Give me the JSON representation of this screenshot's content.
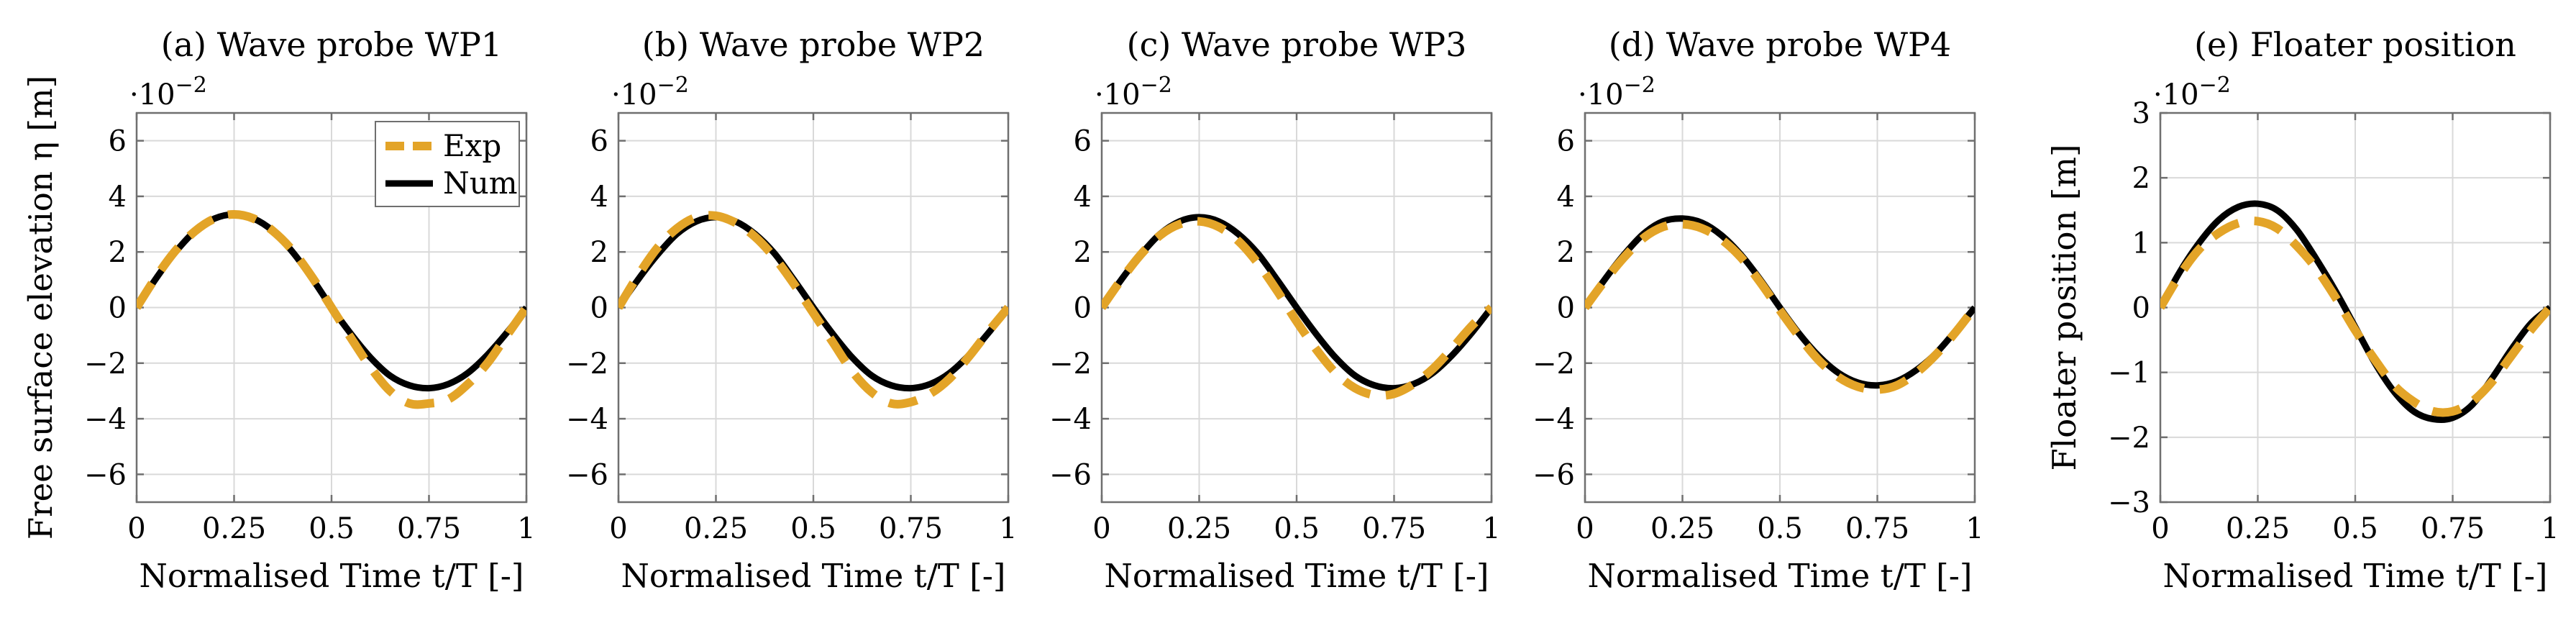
{
  "chart_data": [
    {
      "type": "line",
      "title": "(a) Wave probe WP1",
      "xlabel": "Normalised Time t/T [-]",
      "ylabel": "Free surface elevation η [m]",
      "y_multiplier": "·10^−2",
      "xlim": [
        0,
        1
      ],
      "ylim": [
        -7,
        7
      ],
      "xticks": [
        "0",
        "0.25",
        "0.5",
        "0.75",
        "1"
      ],
      "yticks": [
        "−6",
        "−4",
        "−2",
        "0",
        "2",
        "4",
        "6"
      ],
      "legend": [
        "Exp",
        "Num"
      ],
      "series": [
        {
          "name": "Exp",
          "color": "#E3A428",
          "style": "dashed",
          "x": [
            0,
            0.05,
            0.1,
            0.15,
            0.2,
            0.25,
            0.3,
            0.35,
            0.4,
            0.45,
            0.5,
            0.55,
            0.6,
            0.65,
            0.7,
            0.75,
            0.8,
            0.85,
            0.9,
            0.95,
            1
          ],
          "y": [
            0.0,
            1.1,
            2.05,
            2.75,
            3.2,
            3.35,
            3.2,
            2.75,
            2.05,
            1.1,
            0.0,
            -1.1,
            -2.15,
            -3.0,
            -3.45,
            -3.45,
            -3.3,
            -2.75,
            -2.0,
            -1.0,
            0.0
          ]
        },
        {
          "name": "Num",
          "color": "#000000",
          "style": "solid",
          "x": [
            0,
            0.05,
            0.1,
            0.15,
            0.2,
            0.25,
            0.3,
            0.35,
            0.4,
            0.45,
            0.5,
            0.55,
            0.6,
            0.65,
            0.7,
            0.75,
            0.8,
            0.85,
            0.9,
            0.95,
            1
          ],
          "y": [
            0.0,
            1.05,
            2.0,
            2.75,
            3.2,
            3.35,
            3.2,
            2.75,
            2.0,
            1.05,
            0.0,
            -0.95,
            -1.8,
            -2.45,
            -2.8,
            -2.9,
            -2.75,
            -2.35,
            -1.7,
            -0.9,
            0.0
          ]
        }
      ]
    },
    {
      "type": "line",
      "title": "(b) Wave probe WP2",
      "xlabel": "Normalised Time t/T [-]",
      "ylabel": "",
      "y_multiplier": "·10^−2",
      "xlim": [
        0,
        1
      ],
      "ylim": [
        -7,
        7
      ],
      "xticks": [
        "0",
        "0.25",
        "0.5",
        "0.75",
        "1"
      ],
      "yticks": [
        "−6",
        "−4",
        "−2",
        "0",
        "2",
        "4",
        "6"
      ],
      "series": [
        {
          "name": "Exp",
          "color": "#E3A428",
          "style": "dashed",
          "x": [
            0,
            0.05,
            0.1,
            0.15,
            0.2,
            0.25,
            0.3,
            0.35,
            0.4,
            0.45,
            0.5,
            0.55,
            0.6,
            0.65,
            0.7,
            0.75,
            0.8,
            0.85,
            0.9,
            0.95,
            1
          ],
          "y": [
            0.0,
            1.15,
            2.15,
            2.85,
            3.25,
            3.3,
            3.05,
            2.55,
            1.8,
            0.85,
            -0.2,
            -1.25,
            -2.3,
            -3.05,
            -3.45,
            -3.4,
            -3.1,
            -2.55,
            -1.75,
            -0.85,
            0.0
          ]
        },
        {
          "name": "Num",
          "color": "#000000",
          "style": "solid",
          "x": [
            0,
            0.05,
            0.1,
            0.15,
            0.2,
            0.25,
            0.3,
            0.35,
            0.4,
            0.45,
            0.5,
            0.55,
            0.6,
            0.65,
            0.7,
            0.75,
            0.8,
            0.85,
            0.9,
            0.95,
            1
          ],
          "y": [
            0.0,
            1.0,
            1.9,
            2.65,
            3.1,
            3.25,
            3.1,
            2.65,
            1.95,
            1.0,
            0.0,
            -0.95,
            -1.8,
            -2.45,
            -2.8,
            -2.9,
            -2.75,
            -2.35,
            -1.7,
            -0.9,
            0.0
          ]
        }
      ]
    },
    {
      "type": "line",
      "title": "(c) Wave probe WP3",
      "xlabel": "Normalised Time t/T [-]",
      "ylabel": "",
      "y_multiplier": "·10^−2",
      "xlim": [
        0,
        1
      ],
      "ylim": [
        -7,
        7
      ],
      "xticks": [
        "0",
        "0.25",
        "0.5",
        "0.75",
        "1"
      ],
      "yticks": [
        "−6",
        "−4",
        "−2",
        "0",
        "2",
        "4",
        "6"
      ],
      "series": [
        {
          "name": "Exp",
          "color": "#E3A428",
          "style": "dashed",
          "x": [
            0,
            0.05,
            0.1,
            0.15,
            0.2,
            0.25,
            0.3,
            0.35,
            0.4,
            0.45,
            0.5,
            0.55,
            0.6,
            0.65,
            0.7,
            0.75,
            0.8,
            0.85,
            0.9,
            0.95,
            1
          ],
          "y": [
            0.0,
            1.0,
            1.9,
            2.6,
            3.0,
            3.1,
            2.9,
            2.4,
            1.6,
            0.6,
            -0.5,
            -1.5,
            -2.35,
            -2.9,
            -3.15,
            -3.1,
            -2.75,
            -2.2,
            -1.45,
            -0.65,
            0.0
          ]
        },
        {
          "name": "Num",
          "color": "#000000",
          "style": "solid",
          "x": [
            0,
            0.05,
            0.1,
            0.15,
            0.2,
            0.25,
            0.3,
            0.35,
            0.4,
            0.45,
            0.5,
            0.55,
            0.6,
            0.65,
            0.7,
            0.75,
            0.8,
            0.85,
            0.9,
            0.95,
            1
          ],
          "y": [
            0.0,
            1.0,
            1.9,
            2.65,
            3.1,
            3.25,
            3.1,
            2.65,
            1.95,
            1.0,
            0.0,
            -0.95,
            -1.8,
            -2.45,
            -2.8,
            -2.9,
            -2.75,
            -2.35,
            -1.7,
            -0.9,
            0.0
          ]
        }
      ]
    },
    {
      "type": "line",
      "title": "(d) Wave probe WP4",
      "xlabel": "Normalised Time t/T [-]",
      "ylabel": "",
      "y_multiplier": "·10^−2",
      "xlim": [
        0,
        1
      ],
      "ylim": [
        -7,
        7
      ],
      "xticks": [
        "0",
        "0.25",
        "0.5",
        "0.75",
        "1"
      ],
      "yticks": [
        "−6",
        "−4",
        "−2",
        "0",
        "2",
        "4",
        "6"
      ],
      "series": [
        {
          "name": "Exp",
          "color": "#E3A428",
          "style": "dashed",
          "x": [
            0,
            0.05,
            0.1,
            0.15,
            0.2,
            0.25,
            0.3,
            0.35,
            0.4,
            0.45,
            0.5,
            0.55,
            0.6,
            0.65,
            0.7,
            0.75,
            0.8,
            0.85,
            0.9,
            0.95,
            1
          ],
          "y": [
            0.0,
            0.95,
            1.8,
            2.5,
            2.9,
            3.0,
            2.85,
            2.45,
            1.8,
            0.9,
            -0.1,
            -1.05,
            -1.9,
            -2.5,
            -2.85,
            -2.95,
            -2.8,
            -2.35,
            -1.7,
            -0.9,
            0.0
          ]
        },
        {
          "name": "Num",
          "color": "#000000",
          "style": "solid",
          "x": [
            0,
            0.05,
            0.1,
            0.15,
            0.2,
            0.25,
            0.3,
            0.35,
            0.4,
            0.45,
            0.5,
            0.55,
            0.6,
            0.65,
            0.7,
            0.75,
            0.8,
            0.85,
            0.9,
            0.95,
            1
          ],
          "y": [
            0.0,
            1.0,
            1.9,
            2.65,
            3.1,
            3.2,
            3.05,
            2.6,
            1.9,
            1.0,
            0.0,
            -0.95,
            -1.75,
            -2.35,
            -2.7,
            -2.8,
            -2.65,
            -2.25,
            -1.65,
            -0.85,
            0.0
          ]
        }
      ]
    },
    {
      "type": "line",
      "title": "(e) Floater position",
      "xlabel": "Normalised Time t/T [-]",
      "ylabel": "Floater position [m]",
      "y_multiplier": "·10^−2",
      "xlim": [
        0,
        1
      ],
      "ylim": [
        -3,
        3
      ],
      "xticks": [
        "0",
        "0.25",
        "0.5",
        "0.75",
        "1"
      ],
      "yticks": [
        "−3",
        "−2",
        "−1",
        "0",
        "1",
        "2",
        "3"
      ],
      "series": [
        {
          "name": "Exp",
          "color": "#E3A428",
          "style": "dashed",
          "x": [
            0,
            0.05,
            0.1,
            0.15,
            0.2,
            0.25,
            0.3,
            0.35,
            0.4,
            0.45,
            0.5,
            0.55,
            0.6,
            0.65,
            0.7,
            0.75,
            0.8,
            0.85,
            0.9,
            0.95,
            1
          ],
          "y": [
            0.0,
            0.5,
            0.9,
            1.15,
            1.3,
            1.33,
            1.22,
            0.95,
            0.6,
            0.15,
            -0.35,
            -0.8,
            -1.2,
            -1.45,
            -1.6,
            -1.6,
            -1.45,
            -1.15,
            -0.75,
            -0.35,
            0.0
          ]
        },
        {
          "name": "Num",
          "color": "#000000",
          "style": "solid",
          "x": [
            0,
            0.05,
            0.1,
            0.15,
            0.2,
            0.25,
            0.3,
            0.35,
            0.4,
            0.45,
            0.5,
            0.55,
            0.6,
            0.65,
            0.7,
            0.75,
            0.8,
            0.85,
            0.9,
            0.95,
            1
          ],
          "y": [
            0.0,
            0.55,
            1.0,
            1.35,
            1.55,
            1.6,
            1.5,
            1.2,
            0.75,
            0.25,
            -0.3,
            -0.85,
            -1.3,
            -1.6,
            -1.72,
            -1.7,
            -1.5,
            -1.1,
            -0.65,
            -0.25,
            0.0
          ]
        }
      ]
    }
  ]
}
